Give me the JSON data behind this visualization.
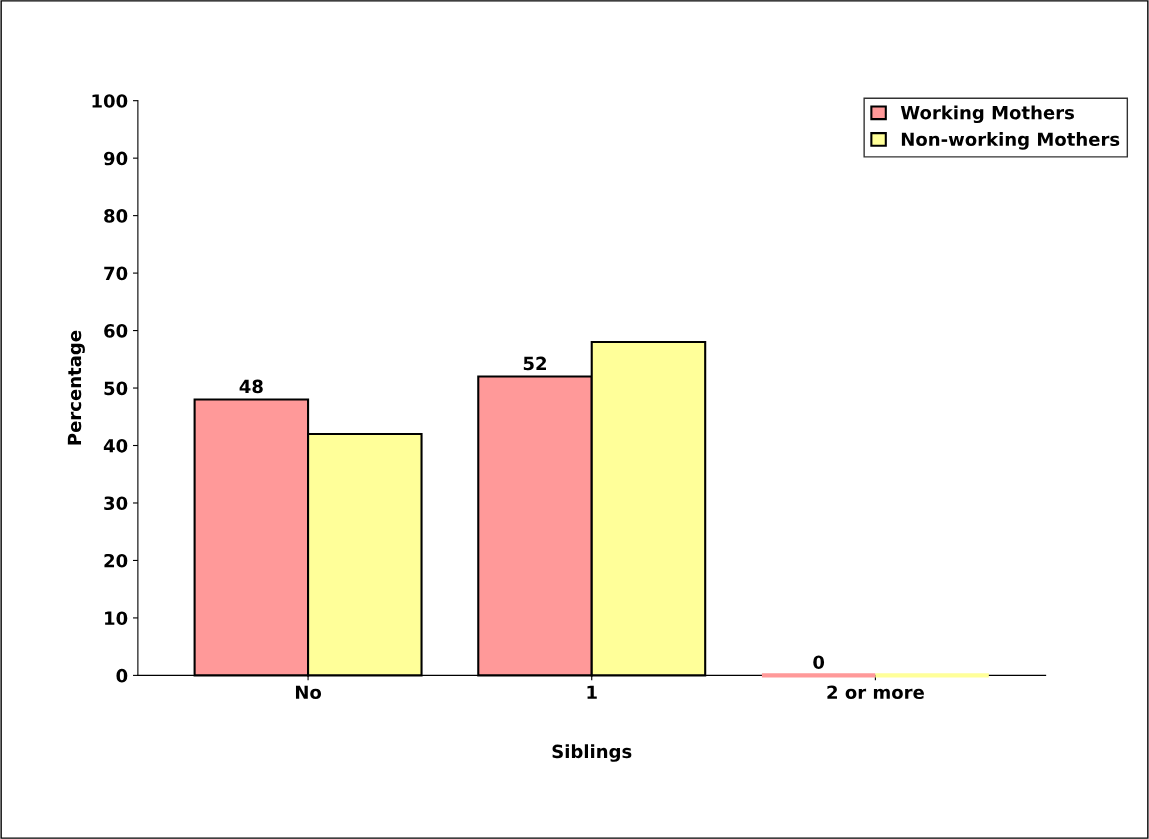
{
  "chart_data": {
    "type": "bar",
    "xlabel": "Siblings",
    "ylabel": "Percentage",
    "categories": [
      "No",
      "1",
      "2 or more"
    ],
    "series": [
      {
        "name": "Working Mothers",
        "color": "#ff9999",
        "values": [
          48,
          52,
          0
        ],
        "value_labels": [
          "48",
          "52",
          "0"
        ]
      },
      {
        "name": "Non-working Mothers",
        "color": "#ffff99",
        "values": [
          42,
          58,
          0
        ]
      }
    ],
    "ylim": [
      0,
      100
    ],
    "yticks": [
      0,
      10,
      20,
      30,
      40,
      50,
      60,
      70,
      80,
      90,
      100
    ],
    "grid": false,
    "legend": "top right"
  }
}
